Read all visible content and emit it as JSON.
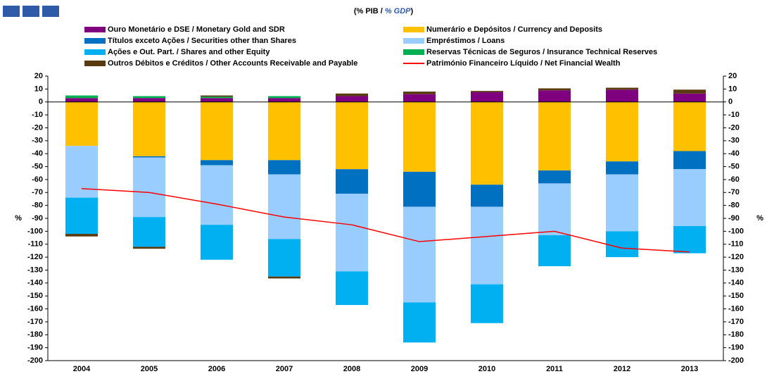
{
  "chart_data": {
    "type": "bar",
    "stacked": true,
    "subtitle_parts": [
      "(% PIB / ",
      "% GDP",
      ")"
    ],
    "y_label": "%",
    "categories": [
      "2004",
      "2005",
      "2006",
      "2007",
      "2008",
      "2009",
      "2010",
      "2011",
      "2012",
      "2013"
    ],
    "series": [
      {
        "name": "Ouro Monetário e DSE / Monetary Gold and SDR",
        "color": "#7f007f",
        "values": [
          3,
          3,
          3,
          3,
          4.5,
          6,
          7.5,
          9,
          9.5,
          6.5
        ]
      },
      {
        "name": "Numerário e Depósitos / Currency and Deposits",
        "color": "#ffc000",
        "values": [
          -34,
          -42,
          -45,
          -45,
          -52,
          -54,
          -64,
          -53,
          -46,
          -38
        ]
      },
      {
        "name": "Títulos exceto Ações / Securities other than Shares",
        "color": "#0070c0",
        "values": [
          0,
          -1,
          -4,
          -11,
          -19,
          -27,
          -17,
          -10,
          -10,
          -14
        ]
      },
      {
        "name": "Empréstimos / Loans",
        "color": "#99ccff",
        "values": [
          -40,
          -46,
          -46,
          -50,
          -60,
          -74,
          -60,
          -40,
          -44,
          -44
        ]
      },
      {
        "name": "Ações e Out. Part. / Shares and other Equity",
        "color": "#00b0f0",
        "values": [
          -28,
          -23,
          -27,
          -29,
          -26,
          -31,
          -30,
          -24,
          -20,
          -21
        ]
      },
      {
        "name": "Reservas Técnicas de Seguros / Insurance Technical Reserves",
        "color": "#00b050",
        "values": [
          2,
          1.5,
          1,
          1.5,
          0,
          0,
          0,
          0,
          0,
          0
        ]
      },
      {
        "name": "Outros Débitos e Créditos / Other Accounts Receivable and Payable",
        "color": "#5a3a10",
        "values": [
          -2,
          -1.5,
          1,
          -1.5,
          2,
          2,
          1,
          1.5,
          1.5,
          3
        ]
      },
      {
        "name": "Património Financeiro Líquido / Net Financial Wealth",
        "color": "#ff0000",
        "type": "line",
        "values": [
          -67,
          -70,
          -79,
          -89,
          -95,
          -108,
          -104,
          -100,
          -113,
          -116
        ]
      }
    ],
    "ylim": [
      -200,
      20
    ],
    "yticks": [
      -200,
      -190,
      -180,
      -170,
      -160,
      -150,
      -140,
      -130,
      -120,
      -110,
      -100,
      -90,
      -80,
      -70,
      -60,
      -50,
      -40,
      -30,
      -20,
      -10,
      0,
      10,
      20
    ],
    "grid": false
  }
}
